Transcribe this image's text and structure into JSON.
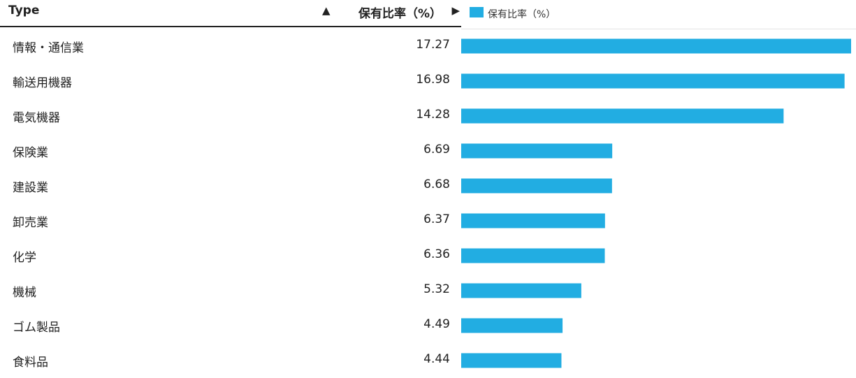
{
  "table": {
    "header_type": "Type",
    "header_value": "保有比率（%）",
    "sort_glyph": "▲",
    "expand_glyph": "▶"
  },
  "legend": {
    "label": "保有比率（%）"
  },
  "colors": {
    "bar": "#22ade2"
  },
  "chart_data": {
    "type": "bar",
    "orientation": "horizontal",
    "categories": [
      "情報・通信業",
      "輸送用機器",
      "電気機器",
      "保険業",
      "建設業",
      "卸売業",
      "化学",
      "機械",
      "ゴム製品",
      "食料品"
    ],
    "series": [
      {
        "name": "保有比率（%）",
        "values": [
          17.27,
          16.98,
          14.28,
          6.69,
          6.68,
          6.37,
          6.36,
          5.32,
          4.49,
          4.44
        ]
      }
    ],
    "value_labels": [
      "17.27",
      "16.98",
      "14.28",
      "6.69",
      "6.68",
      "6.37",
      "6.36",
      "5.32",
      "4.49",
      "4.44"
    ],
    "xlim": [
      0,
      17.27
    ],
    "legend": "top-left",
    "grid": false
  }
}
